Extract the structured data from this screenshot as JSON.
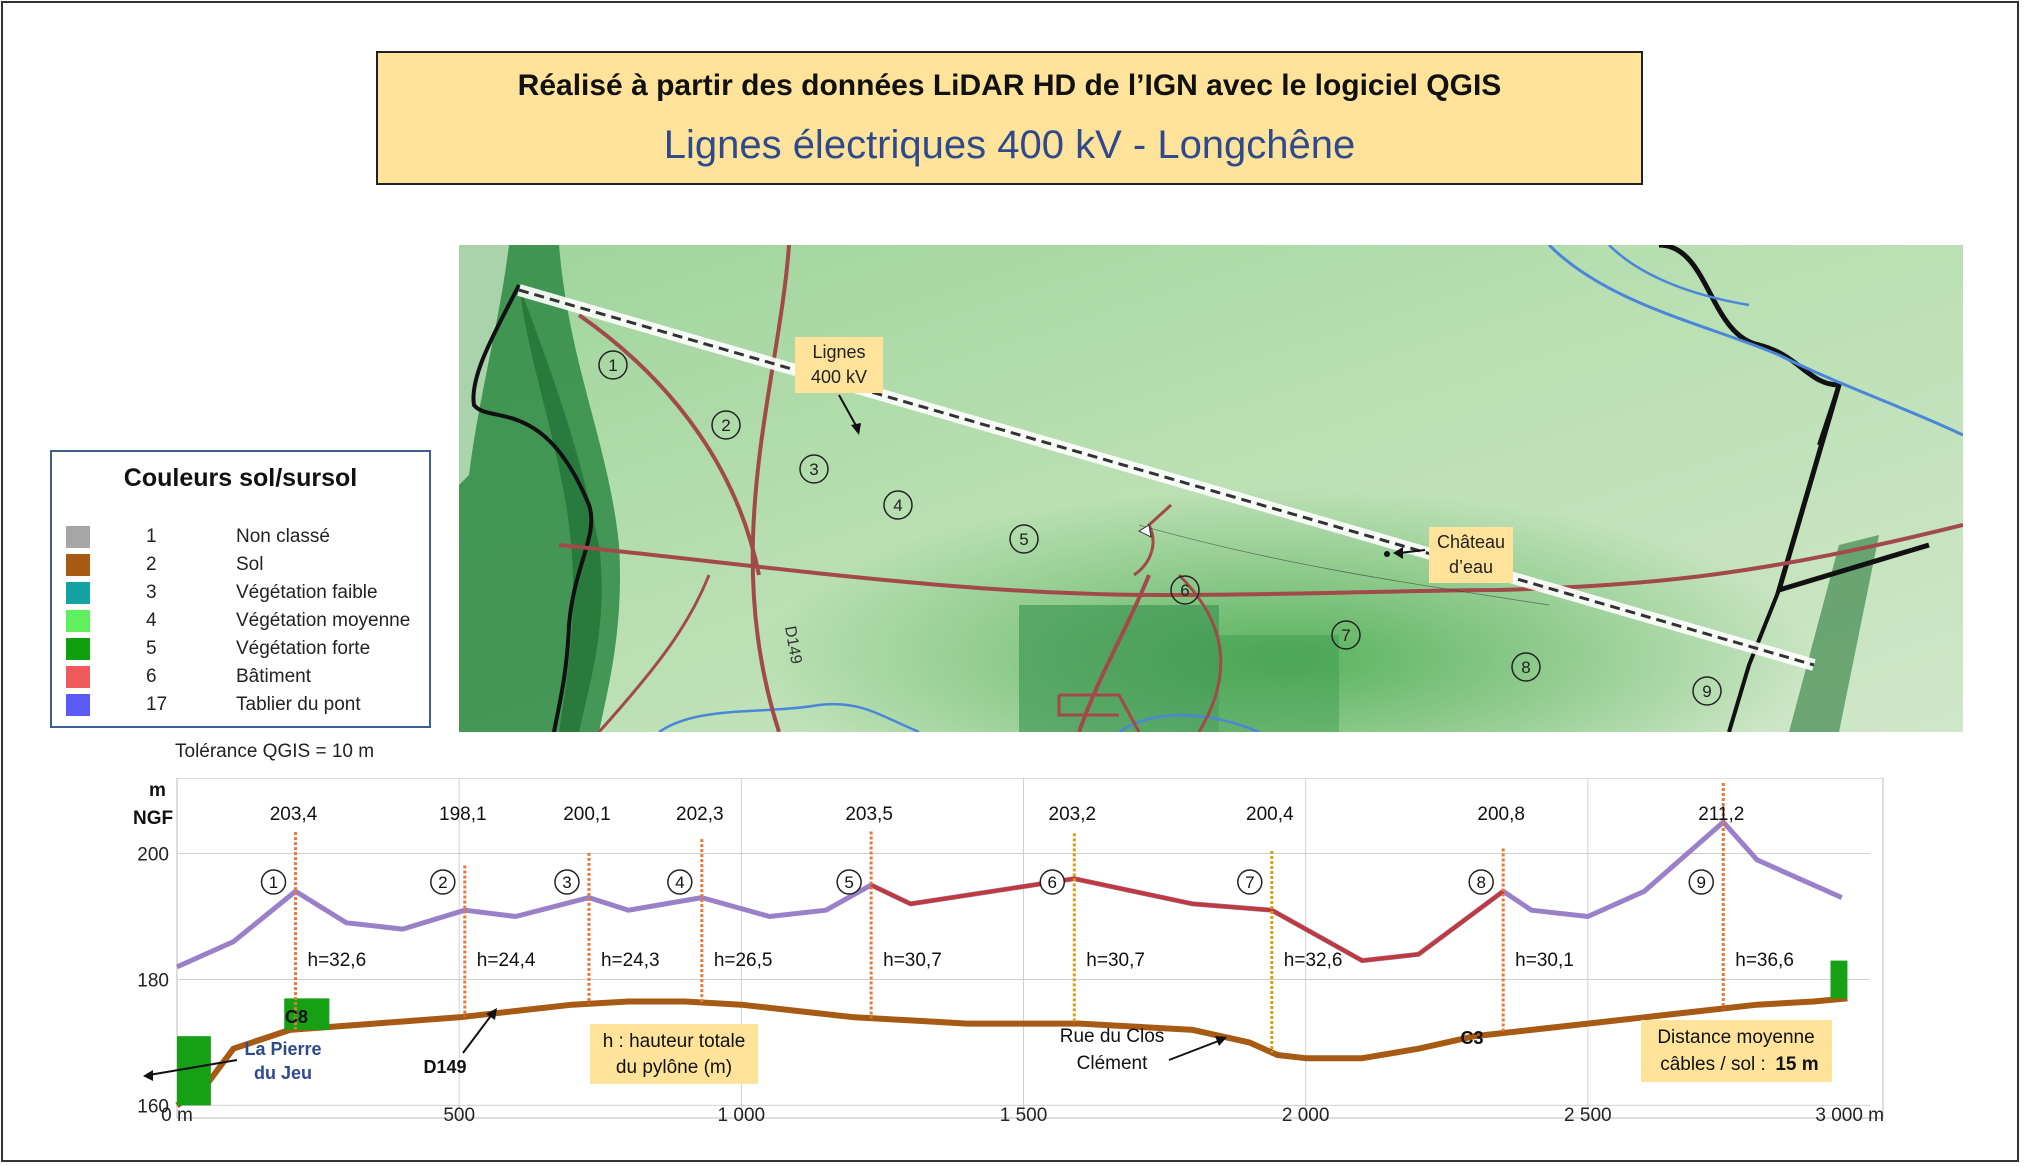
{
  "header": {
    "line1": "Réalisé à partir des données LiDAR HD de l’IGN avec le logiciel QGIS",
    "line2": "Lignes électriques 400 kV - Longchêne"
  },
  "map": {
    "callout_lines": [
      "Lignes",
      "400 kV"
    ],
    "callout_chateau": [
      "Château",
      "d’eau"
    ],
    "road_label": "D149",
    "pylon_numbers": [
      "1",
      "2",
      "3",
      "4",
      "5",
      "6",
      "7",
      "8",
      "9"
    ]
  },
  "legend": {
    "title": "Couleurs sol/sursol",
    "items": [
      {
        "code": "1",
        "label": "Non classé",
        "color": "#a6a6a6"
      },
      {
        "code": "2",
        "label": "Sol",
        "color": "#a65a14"
      },
      {
        "code": "3",
        "label": "Végétation faible",
        "color": "#13a3a3"
      },
      {
        "code": "4",
        "label": "Végétation moyenne",
        "color": "#5ef05e"
      },
      {
        "code": "5",
        "label": "Végétation forte",
        "color": "#0fa00f"
      },
      {
        "code": "6",
        "label": "Bâtiment",
        "color": "#f05a5a"
      },
      {
        "code": "17",
        "label": "Tablier du pont",
        "color": "#5a5af5"
      }
    ]
  },
  "tolerance": "Tolérance QGIS = 10 m",
  "chart_data": {
    "type": "line",
    "ylabel": "m NGF",
    "ylabel_top": "m",
    "ylabel_bottom": "NGF",
    "yticks": [
      "200",
      "180",
      "160"
    ],
    "xticks": [
      "0 m",
      "500",
      "1 000",
      "1 500",
      "2 000",
      "2 500",
      "3 000 m"
    ],
    "xlim": [
      0,
      3000
    ],
    "ylim": [
      158,
      212
    ],
    "pylons": [
      {
        "n": "1",
        "x": 210,
        "top": "203,4",
        "top_value": 203.4,
        "h": "h=32,6"
      },
      {
        "n": "2",
        "x": 510,
        "top": "198,1",
        "top_value": 198.1,
        "h": "h=24,4"
      },
      {
        "n": "3",
        "x": 730,
        "top": "200,1",
        "top_value": 200.1,
        "h": "h=24,3"
      },
      {
        "n": "4",
        "x": 930,
        "top": "202,3",
        "top_value": 202.3,
        "h": "h=26,5"
      },
      {
        "n": "5",
        "x": 1230,
        "top": "203,5",
        "top_value": 203.5,
        "h": "h=30,7"
      },
      {
        "n": "6",
        "x": 1590,
        "top": "203,2",
        "top_value": 203.2,
        "h": "h=30,7"
      },
      {
        "n": "7",
        "x": 1940,
        "top": "200,4",
        "top_value": 200.4,
        "h": "h=32,6"
      },
      {
        "n": "8",
        "x": 2350,
        "top": "200,8",
        "top_value": 200.8,
        "h": "h=30,1"
      },
      {
        "n": "9",
        "x": 2740,
        "top": "211,2",
        "top_value": 211.2,
        "h": "h=36,6"
      }
    ],
    "series": [
      {
        "color": "#a65a14",
        "points": [
          [
            0,
            160
          ],
          [
            50,
            163
          ],
          [
            100,
            169
          ],
          [
            200,
            172
          ],
          [
            350,
            173
          ],
          [
            500,
            174
          ],
          [
            600,
            175
          ],
          [
            700,
            176
          ],
          [
            800,
            176.5
          ],
          [
            900,
            176.5
          ],
          [
            1000,
            176
          ],
          [
            1100,
            175
          ],
          [
            1200,
            174
          ],
          [
            1300,
            173.5
          ],
          [
            1400,
            173
          ],
          [
            1500,
            173
          ],
          [
            1600,
            173
          ],
          [
            1700,
            172.5
          ],
          [
            1800,
            172
          ],
          [
            1900,
            170
          ],
          [
            1950,
            168
          ],
          [
            2000,
            167.5
          ],
          [
            2100,
            167.5
          ],
          [
            2200,
            169
          ],
          [
            2300,
            171
          ],
          [
            2400,
            172
          ],
          [
            2500,
            173
          ],
          [
            2600,
            174
          ],
          [
            2700,
            175
          ],
          [
            2800,
            176
          ],
          [
            2900,
            176.5
          ],
          [
            2960,
            177
          ]
        ]
      },
      {
        "color": "#9a80c8",
        "points": [
          [
            0,
            182
          ],
          [
            100,
            186
          ],
          [
            210,
            194
          ],
          [
            300,
            189
          ],
          [
            400,
            188
          ],
          [
            510,
            191
          ],
          [
            600,
            190
          ],
          [
            730,
            193
          ],
          [
            800,
            191
          ],
          [
            930,
            193
          ],
          [
            1050,
            190
          ],
          [
            1150,
            191
          ],
          [
            1230,
            195
          ],
          [
            1300,
            192
          ],
          [
            1590,
            196
          ],
          [
            1800,
            192
          ],
          [
            1940,
            191
          ],
          [
            2100,
            183
          ],
          [
            2200,
            184
          ],
          [
            2350,
            194
          ],
          [
            2400,
            191
          ],
          [
            2500,
            190
          ],
          [
            2600,
            194
          ],
          [
            2740,
            205
          ],
          [
            2800,
            199
          ],
          [
            2950,
            193
          ]
        ]
      }
    ],
    "annotations": {
      "start_place": [
        "La Pierre",
        "du Jeu"
      ],
      "c8": "C8",
      "d149": "D149",
      "h_note": [
        "h : hauteur totale",
        "du pylône (m)"
      ],
      "road_name": [
        "Rue du Clos",
        "Clément"
      ],
      "c3": "C3",
      "avg_distance": [
        "Distance moyenne",
        "câbles / sol :",
        "15 m"
      ]
    }
  }
}
